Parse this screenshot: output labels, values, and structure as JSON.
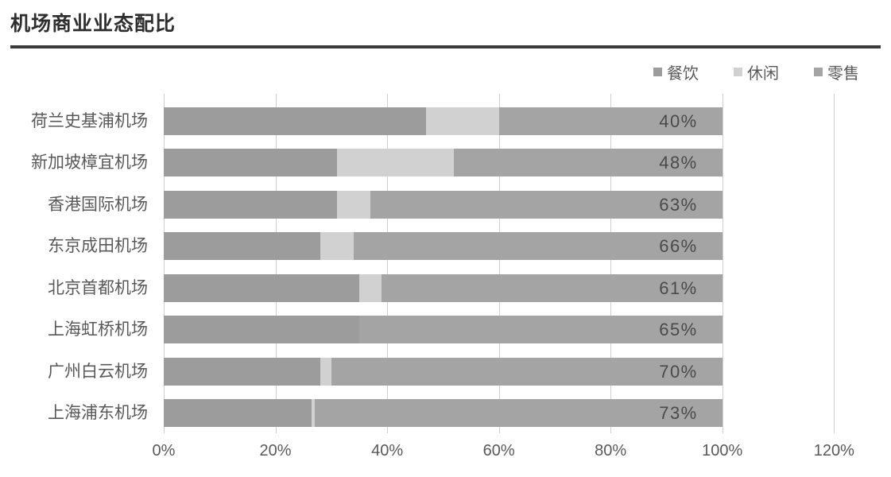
{
  "title": "机场商业业态配比",
  "colors": {
    "catering": "#9c9c9c",
    "leisure": "#d1d1d1",
    "retail": "#a4a4a4",
    "grid": "#cfcfcf",
    "axis_text": "#595959",
    "value_text": "#4a4a4a",
    "title_text": "#2e2e2e",
    "title_rule": "#3b3b3b"
  },
  "chart_data": {
    "type": "bar",
    "orientation": "horizontal-stacked",
    "title": "机场商业业态配比",
    "categories": [
      "荷兰史基浦机场",
      "新加坡樟宜机场",
      "香港国际机场",
      "东京成田机场",
      "北京首都机场",
      "上海虹桥机场",
      "广州白云机场",
      "上海浦东机场"
    ],
    "series": [
      {
        "name": "餐饮",
        "color": "#9c9c9c",
        "values": [
          47,
          31,
          31,
          28,
          35,
          35,
          28,
          26.5
        ]
      },
      {
        "name": "休闲",
        "color": "#d1d1d1",
        "values": [
          13,
          21,
          6,
          6,
          4,
          0,
          2,
          0.5
        ]
      },
      {
        "name": "零售",
        "color": "#a4a4a4",
        "values": [
          40,
          48,
          63,
          66,
          61,
          65,
          70,
          73
        ]
      }
    ],
    "bar_labels": [
      "40%",
      "48%",
      "63%",
      "66%",
      "61%",
      "65%",
      "70%",
      "73%"
    ],
    "x_ticks": [
      {
        "label": "0%",
        "value": 0
      },
      {
        "label": "20%",
        "value": 20
      },
      {
        "label": "40%",
        "value": 40
      },
      {
        "label": "60%",
        "value": 60
      },
      {
        "label": "80%",
        "value": 80
      },
      {
        "label": "100%",
        "value": 100
      },
      {
        "label": "120%",
        "value": 120
      }
    ],
    "xlim": [
      0,
      120
    ],
    "grid": true,
    "legend_position": "top-right"
  }
}
